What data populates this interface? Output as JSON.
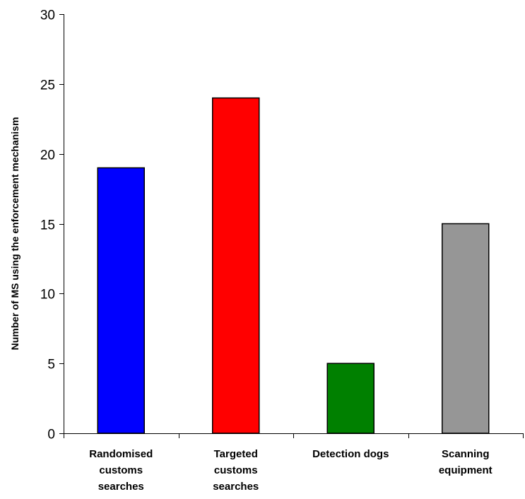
{
  "chart_data": {
    "type": "bar",
    "categories": [
      [
        "Randomised",
        "customs",
        "searches"
      ],
      [
        "Targeted",
        "customs",
        "searches"
      ],
      [
        "Detection dogs"
      ],
      [
        "Scanning",
        "equipment"
      ]
    ],
    "values": [
      19,
      24,
      5,
      15
    ],
    "colors": [
      "#0000ff",
      "#ff0000",
      "#008000",
      "#969696"
    ],
    "ylabel": "Number of MS using the enforcement mechanism",
    "xlabel": "",
    "ylim": [
      0,
      30
    ],
    "yticks": [
      0,
      5,
      10,
      15,
      20,
      25,
      30
    ],
    "grid": false,
    "legend": "none"
  }
}
